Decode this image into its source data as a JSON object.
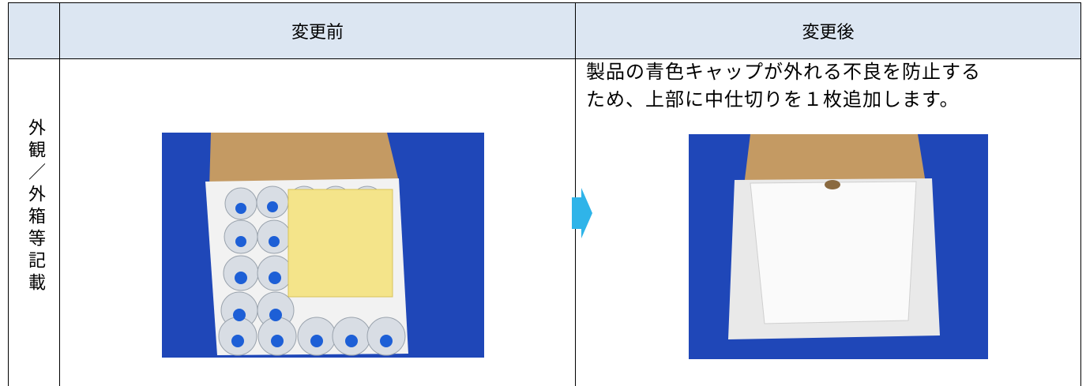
{
  "table": {
    "header": {
      "before": "変更前",
      "after": "変更後"
    },
    "row_label": "外観／外箱等記載",
    "after_note": [
      "製品の青色キャップが外れる不良を防止する",
      "ため、上部に中仕切りを１枚追加します。"
    ]
  }
}
